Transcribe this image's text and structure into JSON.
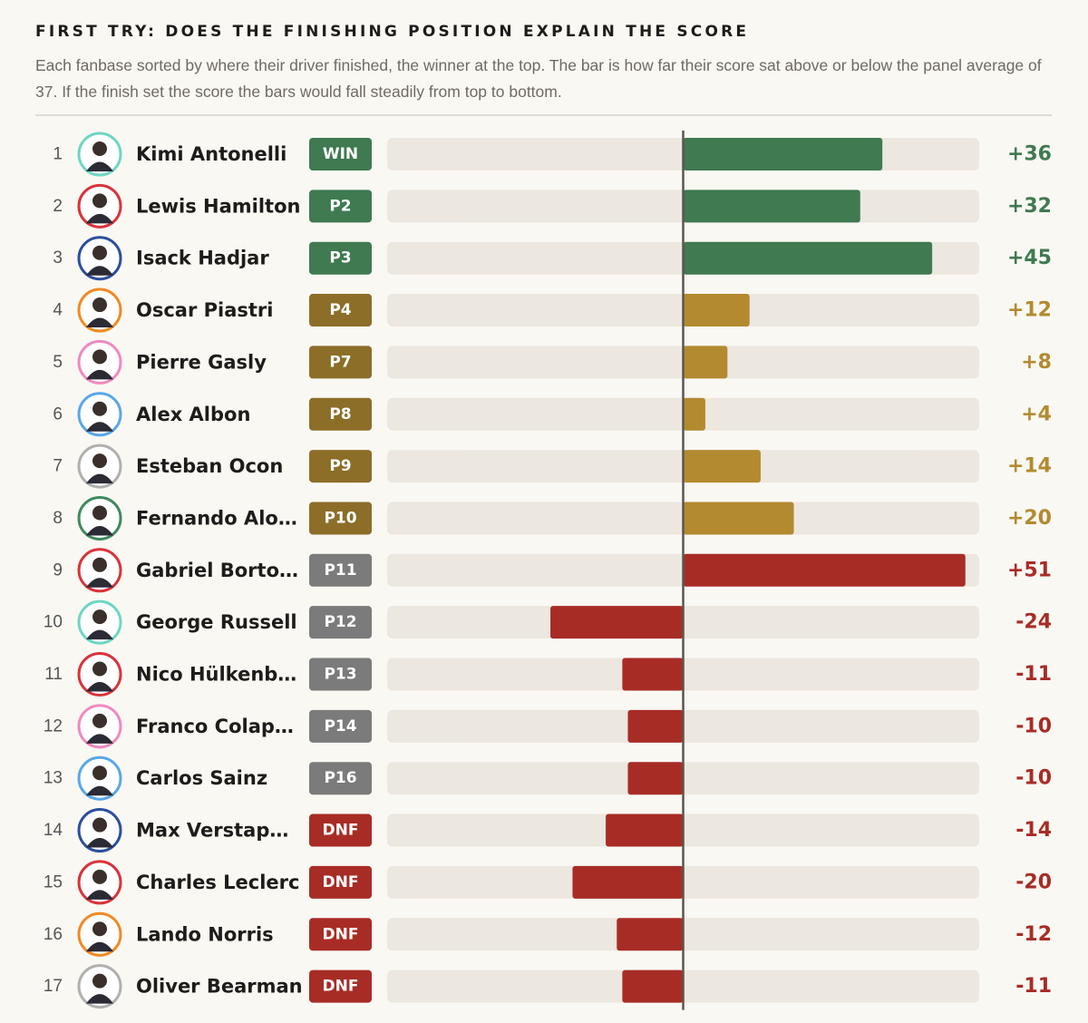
{
  "chart_data": {
    "type": "diverging-bar",
    "title": "FIRST TRY: DOES THE FINISHING POSITION EXPLAIN THE SCORE",
    "subtitle": "Each fanbase sorted by where their driver finished, the winner at the top. The bar is how far their score sat above or below the panel average of 37. If the finish set the score the bars would fall steadily from top to bottom.",
    "ranks": [
      1,
      2,
      3,
      4,
      5,
      6,
      7,
      8,
      9,
      10,
      11,
      12,
      13,
      14,
      15,
      16,
      17
    ],
    "categories": [
      "Kimi Antonelli",
      "Lewis Hamilton",
      "Isack Hadjar",
      "Oscar Piastri",
      "Pierre Gasly",
      "Alex Albon",
      "Esteban Ocon",
      "Fernando Alo…",
      "Gabriel Borto…",
      "George Russell",
      "Nico Hülkenb…",
      "Franco Colap…",
      "Carlos Sainz",
      "Max Verstap…",
      "Charles Leclerc",
      "Lando Norris",
      "Oliver Bearman"
    ],
    "finishes": [
      "WIN",
      "P2",
      "P3",
      "P4",
      "P7",
      "P8",
      "P9",
      "P10",
      "P11",
      "P12",
      "P13",
      "P14",
      "P16",
      "DNF",
      "DNF",
      "DNF",
      "DNF"
    ],
    "values": [
      36,
      32,
      45,
      12,
      8,
      4,
      14,
      20,
      51,
      -24,
      -11,
      -10,
      -10,
      -14,
      -20,
      -12,
      -11
    ],
    "value_labels": [
      "+36",
      "+32",
      "+45",
      "+12",
      "+8",
      "+4",
      "+14",
      "+20",
      "+51",
      "-24",
      "-11",
      "-10",
      "-10",
      "-14",
      "-20",
      "-12",
      "-11"
    ],
    "bar_colors": [
      "#3f7a50",
      "#3f7a50",
      "#3f7a50",
      "#b38a30",
      "#b38a30",
      "#b38a30",
      "#b38a30",
      "#b38a30",
      "#a82c26",
      "#a82c26",
      "#a82c26",
      "#a82c26",
      "#a82c26",
      "#a82c26",
      "#a82c26",
      "#a82c26",
      "#a82c26"
    ],
    "badge_colors": [
      "#3f7a50",
      "#3f7a50",
      "#3f7a50",
      "#8c6e28",
      "#8c6e28",
      "#8c6e28",
      "#8c6e28",
      "#8c6e28",
      "#7b7b7b",
      "#7b7b7b",
      "#7b7b7b",
      "#7b7b7b",
      "#7b7b7b",
      "#a82c26",
      "#a82c26",
      "#a82c26",
      "#a82c26"
    ],
    "avatar_colors": [
      "#6fd6c4",
      "#d9333a",
      "#2c4f9e",
      "#f08a24",
      "#f08ac0",
      "#5aa7e8",
      "#b0b0b0",
      "#3f8a5f",
      "#d9333a",
      "#6fd6c4",
      "#d9333a",
      "#f08ac0",
      "#5aa7e8",
      "#2c4f9e",
      "#d9333a",
      "#f08a24",
      "#b0b0b0"
    ],
    "xlim": [
      -53.5,
      53.5
    ]
  }
}
